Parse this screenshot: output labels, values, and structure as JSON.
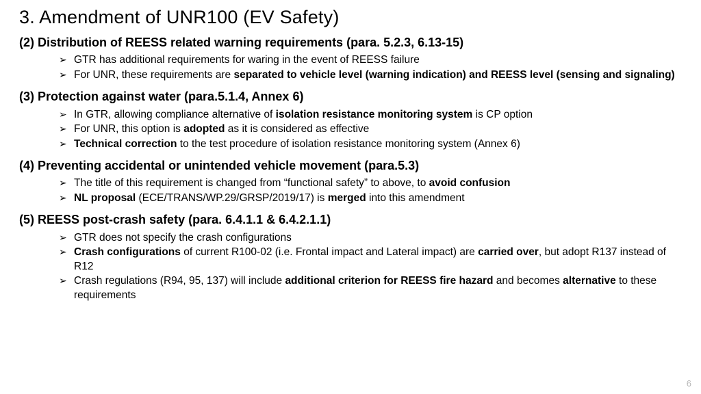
{
  "title": "3. Amendment of UNR100 (EV Safety)",
  "sections": [
    {
      "head": "(2) Distribution of REESS related warning requirements (para. 5.2.3, 6.13-15)",
      "bullets": [
        "GTR has additional requirements for waring in the event of REESS failure",
        "For UNR, these requirements are <b>separated to vehicle level (warning indication) and REESS level (sensing and signaling)</b>"
      ]
    },
    {
      "head": "(3) Protection against water (para.5.1.4, Annex 6)",
      "bullets": [
        "In GTR, allowing compliance alternative of <b>isolation resistance monitoring system</b> is CP option",
        "For UNR, this option is <b>adopted</b> as it is considered as effective",
        "<b>Technical correction</b> to the test procedure of isolation resistance monitoring system (Annex 6)"
      ]
    },
    {
      "head": "(4) Preventing accidental or unintended vehicle movement (para.5.3)",
      "bullets": [
        "The title of this requirement is changed from “functional safety” to above, to <b>avoid confusion</b>",
        "<b>NL proposal</b> (ECE/TRANS/WP.29/GRSP/2019/17) is <b>merged</b> into this amendment"
      ]
    },
    {
      "head": "(5) REESS post-crash safety (para. 6.4.1.1 & 6.4.2.1.1)",
      "bullets": [
        "GTR does not specify the crash configurations",
        "<b>Crash configurations</b> of current R100-02 (i.e. Frontal impact and Lateral impact) are <b>carried over</b>, but adopt R137 instead of R12",
        "Crash regulations (R94, 95, 137) will include <b>additional criterion for REESS fire hazard</b> and becomes <b>alternative</b> to these requirements"
      ]
    }
  ],
  "page_number": "6"
}
